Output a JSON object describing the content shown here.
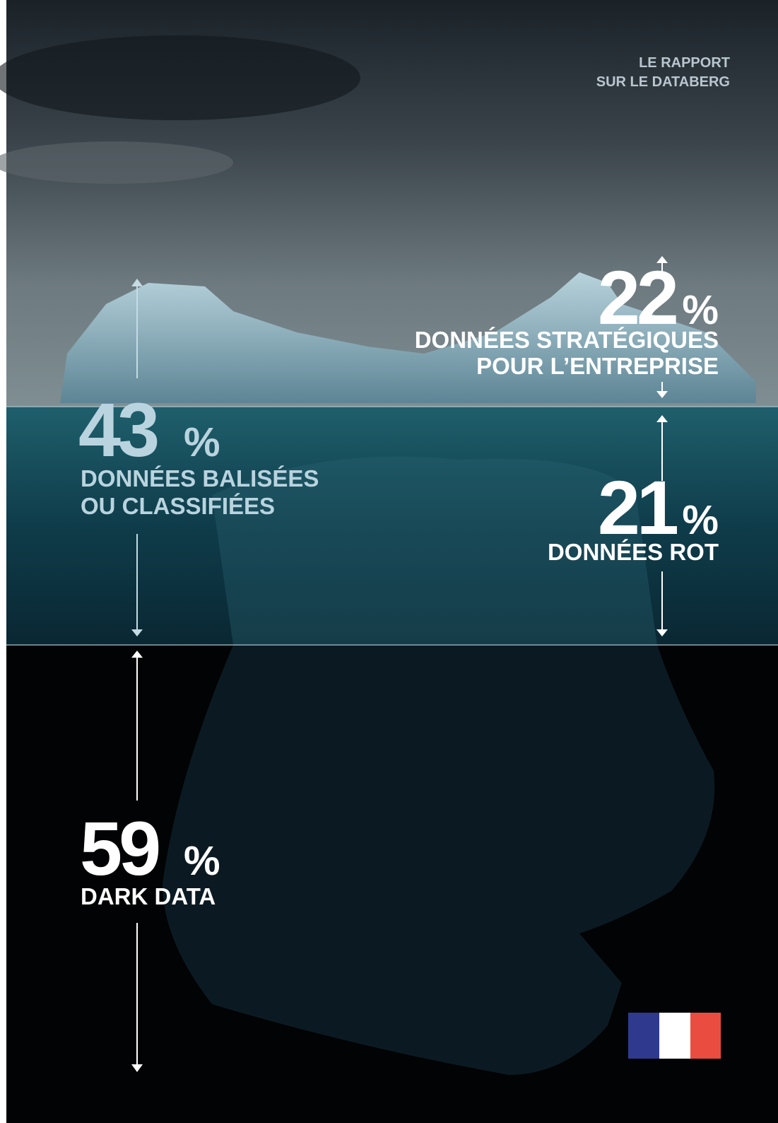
{
  "header": {
    "lines": [
      "LE RAPPORT",
      "SUR LE DATABERG"
    ]
  },
  "stats": [
    {
      "value": 22,
      "unit": "%",
      "label": [
        "DONNÉES STRATÉGIQUES",
        "POUR L’ENTREPRISE"
      ]
    },
    {
      "value": 43,
      "unit": "%",
      "label": [
        "DONNÉES BALISÉES",
        "OU CLASSIFIÉES"
      ]
    },
    {
      "value": 21,
      "unit": "%",
      "label": [
        "DONNÉES ROT"
      ]
    },
    {
      "value": 59,
      "unit": "%",
      "label": [
        "DARK DATA"
      ]
    }
  ]
}
